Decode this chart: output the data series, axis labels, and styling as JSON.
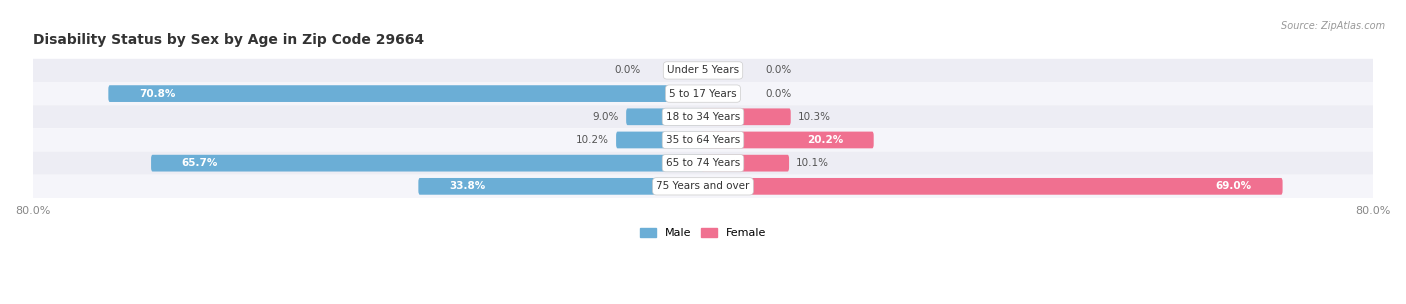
{
  "title": "Disability Status by Sex by Age in Zip Code 29664",
  "source": "Source: ZipAtlas.com",
  "categories": [
    "Under 5 Years",
    "5 to 17 Years",
    "18 to 34 Years",
    "35 to 64 Years",
    "65 to 74 Years",
    "75 Years and over"
  ],
  "male_values": [
    0.0,
    70.8,
    9.0,
    10.2,
    65.7,
    33.8
  ],
  "female_values": [
    0.0,
    0.0,
    10.3,
    20.2,
    10.1,
    69.0
  ],
  "male_color": "#6baed6",
  "female_color": "#f07090",
  "male_color_dark": "#5090c0",
  "female_color_dark": "#e05070",
  "row_bg_even": "#ededf4",
  "row_bg_odd": "#f5f5fa",
  "axis_max": 80.0,
  "title_fontsize": 10,
  "bar_height": 0.38,
  "background_color": "#ffffff",
  "label_inside_threshold": 20
}
